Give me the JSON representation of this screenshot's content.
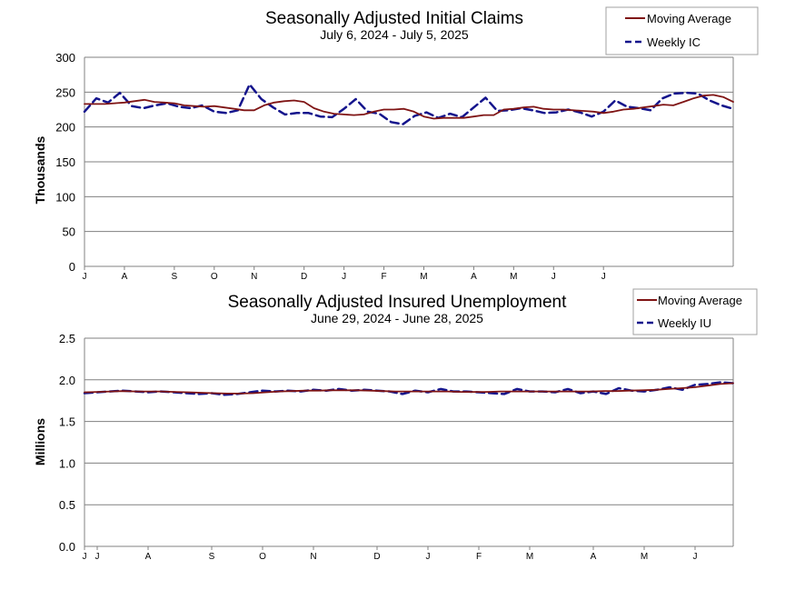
{
  "colors": {
    "moving_average": "#7f1414",
    "weekly": "#14148c",
    "grid": "#808080",
    "axis": "#808080"
  },
  "chart_data": [
    {
      "type": "line",
      "title": "Seasonally Adjusted Initial Claims",
      "subtitle": "July 6, 2024 - July 5, 2025",
      "ylabel": "Thousands",
      "xlabel": "",
      "ylim": [
        0,
        300
      ],
      "yticks": [
        "0",
        "50",
        "100",
        "150",
        "200",
        "250",
        "300"
      ],
      "ytick_values": [
        0,
        50,
        100,
        150,
        200,
        250,
        300
      ],
      "xtick_labels": [
        "J",
        "A",
        "S",
        "O",
        "N",
        "D",
        "J",
        "F",
        "M",
        "A",
        "M",
        "J",
        "J"
      ],
      "xtick_weeks": [
        0,
        4,
        9,
        13,
        17,
        22,
        26,
        30,
        34,
        39,
        43,
        47,
        52
      ],
      "legend": [
        "Moving Average",
        "Weekly IC"
      ],
      "grid": true,
      "series": [
        {
          "name": "Moving Average",
          "style": "solid",
          "values": [
            233,
            233,
            233,
            234,
            235,
            237,
            239,
            236,
            235,
            234,
            231,
            230,
            229,
            230,
            228,
            226,
            224,
            224,
            231,
            235,
            237,
            238,
            236,
            227,
            222,
            219,
            218,
            217,
            218,
            222,
            225,
            225,
            226,
            222,
            215,
            212,
            213,
            213,
            213,
            215,
            217,
            217,
            225,
            226,
            228,
            229,
            226,
            225,
            225,
            224,
            223,
            222,
            220,
            222,
            225,
            226,
            228,
            230,
            232,
            231,
            236,
            241,
            245,
            246,
            243,
            236
          ]
        },
        {
          "name": "Weekly IC",
          "style": "dashed",
          "values": [
            222,
            241,
            235,
            249,
            230,
            227,
            231,
            234,
            229,
            227,
            231,
            222,
            220,
            224,
            261,
            240,
            228,
            218,
            220,
            220,
            215,
            214,
            226,
            240,
            222,
            219,
            207,
            204,
            216,
            221,
            213,
            219,
            214,
            228,
            242,
            223,
            224,
            227,
            224,
            220,
            221,
            225,
            221,
            215,
            222,
            238,
            229,
            227,
            224,
            241,
            248,
            249,
            248,
            238,
            231,
            226
          ]
        }
      ]
    },
    {
      "type": "line",
      "title": "Seasonally Adjusted Insured Unemployment",
      "subtitle": "June 29, 2024 - June 28, 2025",
      "ylabel": "Millions",
      "xlabel": "",
      "ylim": [
        0,
        2.5
      ],
      "yticks": [
        "0.0",
        "0.5",
        "1.0",
        "1.5",
        "2.0",
        "2.5"
      ],
      "ytick_values": [
        0,
        0.5,
        1.0,
        1.5,
        2.0,
        2.5
      ],
      "xtick_labels": [
        "J",
        "J",
        "A",
        "S",
        "O",
        "N",
        "D",
        "J",
        "F",
        "M",
        "A",
        "M",
        "J"
      ],
      "xtick_weeks": [
        0,
        1,
        5,
        10,
        14,
        18,
        23,
        27,
        31,
        35,
        40,
        44,
        48
      ],
      "legend": [
        "Moving Average",
        "Weekly IU"
      ],
      "grid": true,
      "series": [
        {
          "name": "Moving Average",
          "style": "solid",
          "values": [
            1.85,
            1.855,
            1.86,
            1.865,
            1.86,
            1.86,
            1.86,
            1.855,
            1.85,
            1.845,
            1.84,
            1.835,
            1.835,
            1.84,
            1.85,
            1.86,
            1.865,
            1.87,
            1.87,
            1.875,
            1.875,
            1.875,
            1.87,
            1.865,
            1.86,
            1.86,
            1.86,
            1.86,
            1.86,
            1.855,
            1.855,
            1.855,
            1.86,
            1.86,
            1.86,
            1.86,
            1.86,
            1.86,
            1.86,
            1.86,
            1.865,
            1.865,
            1.87,
            1.875,
            1.88,
            1.89,
            1.9,
            1.91,
            1.93,
            1.95,
            1.96
          ]
        },
        {
          "name": "Weekly IU",
          "style": "dashed",
          "values": [
            1.84,
            1.85,
            1.86,
            1.87,
            1.86,
            1.85,
            1.86,
            1.85,
            1.84,
            1.83,
            1.84,
            1.82,
            1.83,
            1.85,
            1.87,
            1.86,
            1.87,
            1.86,
            1.88,
            1.87,
            1.89,
            1.87,
            1.88,
            1.87,
            1.86,
            1.83,
            1.87,
            1.85,
            1.89,
            1.86,
            1.86,
            1.85,
            1.84,
            1.83,
            1.89,
            1.86,
            1.86,
            1.85,
            1.89,
            1.84,
            1.86,
            1.83,
            1.9,
            1.87,
            1.86,
            1.88,
            1.91,
            1.88,
            1.94,
            1.95,
            1.97,
            1.96
          ]
        }
      ]
    }
  ]
}
